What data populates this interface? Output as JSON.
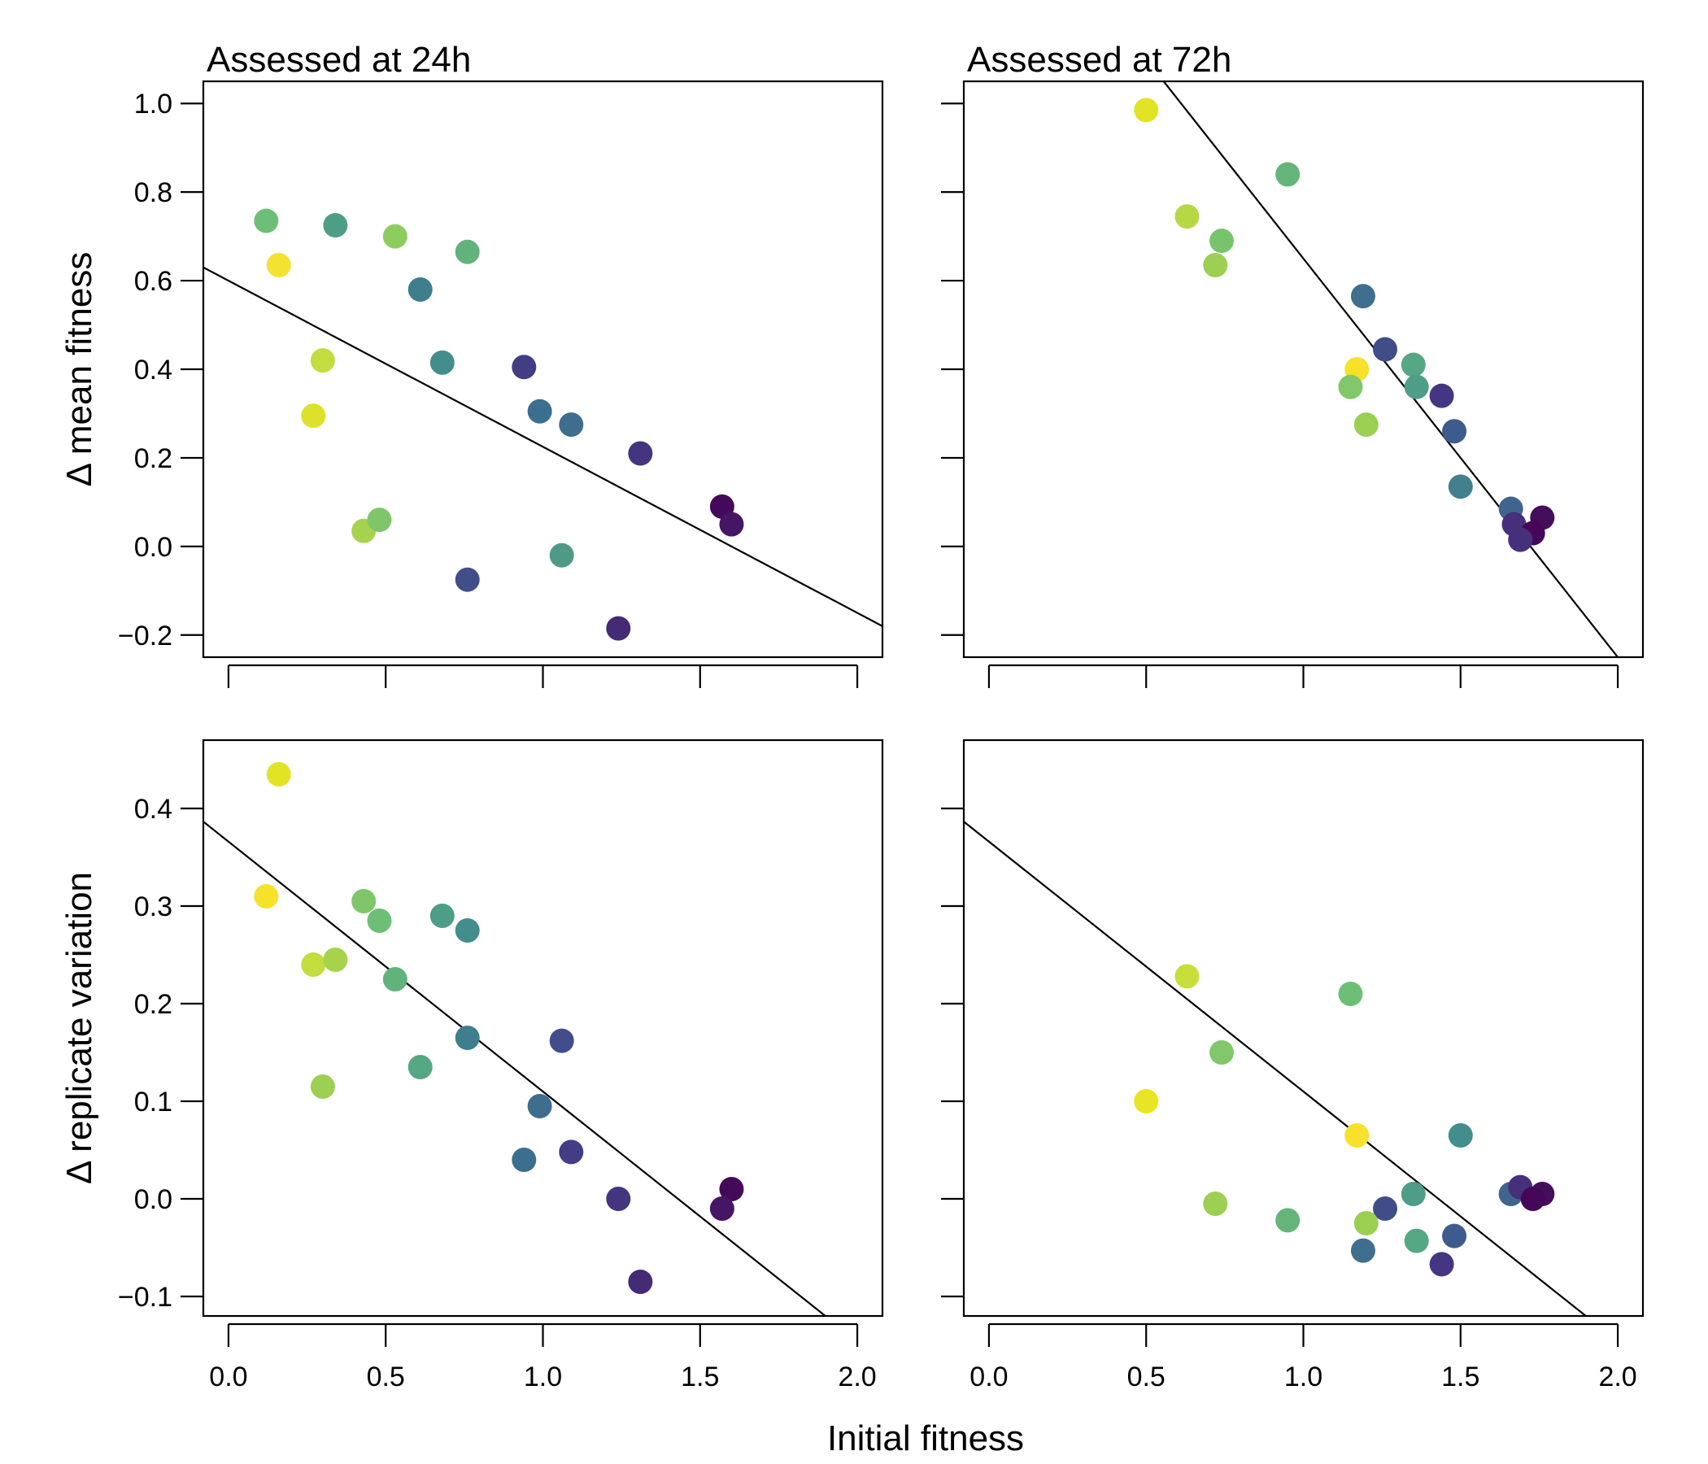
{
  "chart_data": {
    "type": "scatter",
    "xlabel": "Initial fitness",
    "titles": [
      "Assessed at 24h",
      "Assessed at 72h"
    ],
    "row_ylabels": [
      "Δ mean fitness",
      "Δ replicate variation"
    ],
    "xlim": [
      -0.08,
      2.08
    ],
    "xticks": [
      "0.0",
      "0.5",
      "1.0",
      "1.5",
      "2.0"
    ],
    "xtick_values": [
      0,
      0.5,
      1.0,
      1.5,
      2.0
    ],
    "rows": [
      {
        "ylim": [
          -0.25,
          1.05
        ],
        "yticks": [
          "−0.2",
          "0.0",
          "0.2",
          "0.4",
          "0.6",
          "0.8",
          "1.0"
        ],
        "ytick_values": [
          -0.2,
          0,
          0.2,
          0.4,
          0.6,
          0.8,
          1.0
        ]
      },
      {
        "ylim": [
          -0.12,
          0.47
        ],
        "yticks": [
          "−0.1",
          "0.0",
          "0.1",
          "0.2",
          "0.3",
          "0.4"
        ],
        "ytick_values": [
          -0.1,
          0,
          0.1,
          0.2,
          0.3,
          0.4
        ]
      }
    ],
    "panels": [
      {
        "row": 0,
        "col": 0,
        "fit_line": {
          "intercept": 0.6,
          "slope": -0.375
        },
        "points": [
          {
            "x": 0.12,
            "y": 0.735,
            "color": "#6dbf77"
          },
          {
            "x": 0.16,
            "y": 0.635,
            "color": "#f4e232"
          },
          {
            "x": 0.34,
            "y": 0.725,
            "color": "#4e9d87"
          },
          {
            "x": 0.53,
            "y": 0.7,
            "color": "#8ccd5e"
          },
          {
            "x": 0.76,
            "y": 0.665,
            "color": "#62b27b"
          },
          {
            "x": 0.61,
            "y": 0.58,
            "color": "#3e7e8d"
          },
          {
            "x": 0.3,
            "y": 0.42,
            "color": "#c3dc3e"
          },
          {
            "x": 0.68,
            "y": 0.415,
            "color": "#438e8c"
          },
          {
            "x": 0.94,
            "y": 0.405,
            "color": "#433d84"
          },
          {
            "x": 0.27,
            "y": 0.295,
            "color": "#dbe229"
          },
          {
            "x": 0.99,
            "y": 0.305,
            "color": "#3c6e8f"
          },
          {
            "x": 1.09,
            "y": 0.275,
            "color": "#3f6d8e"
          },
          {
            "x": 1.31,
            "y": 0.21,
            "color": "#453580"
          },
          {
            "x": 1.57,
            "y": 0.09,
            "color": "#440a59"
          },
          {
            "x": 1.6,
            "y": 0.05,
            "color": "#461563"
          },
          {
            "x": 0.43,
            "y": 0.035,
            "color": "#a6d34e"
          },
          {
            "x": 0.48,
            "y": 0.06,
            "color": "#7fc66b"
          },
          {
            "x": 1.06,
            "y": -0.02,
            "color": "#4f9a86"
          },
          {
            "x": 0.76,
            "y": -0.075,
            "color": "#424e8a"
          },
          {
            "x": 1.24,
            "y": -0.185,
            "color": "#452a75"
          }
        ]
      },
      {
        "row": 0,
        "col": 1,
        "fit_line": {
          "intercept": 1.55,
          "slope": -0.9
        },
        "points": [
          {
            "x": 0.5,
            "y": 0.985,
            "color": "#e3e326"
          },
          {
            "x": 0.95,
            "y": 0.84,
            "color": "#65b57a"
          },
          {
            "x": 0.63,
            "y": 0.745,
            "color": "#b6d845"
          },
          {
            "x": 0.74,
            "y": 0.69,
            "color": "#78c46e"
          },
          {
            "x": 0.72,
            "y": 0.635,
            "color": "#9ccf52"
          },
          {
            "x": 1.19,
            "y": 0.565,
            "color": "#3f6e8e"
          },
          {
            "x": 1.26,
            "y": 0.445,
            "color": "#404d89"
          },
          {
            "x": 1.35,
            "y": 0.41,
            "color": "#56a783"
          },
          {
            "x": 1.17,
            "y": 0.4,
            "color": "#f7e12a"
          },
          {
            "x": 1.15,
            "y": 0.36,
            "color": "#80c86a"
          },
          {
            "x": 1.36,
            "y": 0.36,
            "color": "#4e9d87"
          },
          {
            "x": 1.44,
            "y": 0.34,
            "color": "#453683"
          },
          {
            "x": 1.2,
            "y": 0.275,
            "color": "#9bcf52"
          },
          {
            "x": 1.48,
            "y": 0.26,
            "color": "#3d5b8c"
          },
          {
            "x": 1.5,
            "y": 0.135,
            "color": "#437f8d"
          },
          {
            "x": 1.66,
            "y": 0.085,
            "color": "#3f658e"
          },
          {
            "x": 1.76,
            "y": 0.065,
            "color": "#440e5c"
          },
          {
            "x": 1.67,
            "y": 0.05,
            "color": "#462f7b"
          },
          {
            "x": 1.73,
            "y": 0.03,
            "color": "#450858"
          },
          {
            "x": 1.69,
            "y": 0.015,
            "color": "#46307a"
          }
        ]
      },
      {
        "row": 1,
        "col": 0,
        "fit_line": {
          "intercept": 0.366,
          "slope": -0.256
        },
        "points": [
          {
            "x": 0.16,
            "y": 0.435,
            "color": "#e3e326"
          },
          {
            "x": 0.12,
            "y": 0.31,
            "color": "#f6e22a"
          },
          {
            "x": 0.43,
            "y": 0.305,
            "color": "#7fc66b"
          },
          {
            "x": 0.48,
            "y": 0.285,
            "color": "#6dbf77"
          },
          {
            "x": 0.68,
            "y": 0.29,
            "color": "#4e9d87"
          },
          {
            "x": 0.76,
            "y": 0.275,
            "color": "#438e8c"
          },
          {
            "x": 0.27,
            "y": 0.24,
            "color": "#c3dc3e"
          },
          {
            "x": 0.34,
            "y": 0.245,
            "color": "#a6d34e"
          },
          {
            "x": 0.53,
            "y": 0.225,
            "color": "#62b27b"
          },
          {
            "x": 0.76,
            "y": 0.165,
            "color": "#3e7e8d"
          },
          {
            "x": 1.06,
            "y": 0.162,
            "color": "#424e8a"
          },
          {
            "x": 0.61,
            "y": 0.135,
            "color": "#56a783"
          },
          {
            "x": 0.3,
            "y": 0.115,
            "color": "#9ccf52"
          },
          {
            "x": 0.99,
            "y": 0.095,
            "color": "#3f6d8e"
          },
          {
            "x": 0.94,
            "y": 0.04,
            "color": "#3c6e8f"
          },
          {
            "x": 1.09,
            "y": 0.048,
            "color": "#433d84"
          },
          {
            "x": 1.24,
            "y": 0.0,
            "color": "#453580"
          },
          {
            "x": 1.6,
            "y": 0.01,
            "color": "#440a59"
          },
          {
            "x": 1.57,
            "y": -0.01,
            "color": "#461563"
          },
          {
            "x": 1.31,
            "y": -0.085,
            "color": "#452a75"
          }
        ]
      },
      {
        "row": 1,
        "col": 1,
        "fit_line": {
          "intercept": 0.366,
          "slope": -0.256
        },
        "points": [
          {
            "x": 0.63,
            "y": 0.228,
            "color": "#c8de3a"
          },
          {
            "x": 1.15,
            "y": 0.21,
            "color": "#6dbf77"
          },
          {
            "x": 0.74,
            "y": 0.15,
            "color": "#80c86a"
          },
          {
            "x": 0.5,
            "y": 0.1,
            "color": "#e9e524"
          },
          {
            "x": 1.17,
            "y": 0.065,
            "color": "#f7e12a"
          },
          {
            "x": 1.5,
            "y": 0.065,
            "color": "#438e8c"
          },
          {
            "x": 1.35,
            "y": 0.005,
            "color": "#4e9d87"
          },
          {
            "x": 1.66,
            "y": 0.005,
            "color": "#3f658e"
          },
          {
            "x": 1.69,
            "y": 0.012,
            "color": "#46307a"
          },
          {
            "x": 1.76,
            "y": 0.005,
            "color": "#440e5c"
          },
          {
            "x": 1.73,
            "y": 0.0,
            "color": "#450858"
          },
          {
            "x": 0.72,
            "y": -0.005,
            "color": "#9ccf52"
          },
          {
            "x": 1.26,
            "y": -0.01,
            "color": "#404d89"
          },
          {
            "x": 0.95,
            "y": -0.022,
            "color": "#65b57a"
          },
          {
            "x": 1.2,
            "y": -0.025,
            "color": "#9bcf52"
          },
          {
            "x": 1.48,
            "y": -0.038,
            "color": "#3d5b8c"
          },
          {
            "x": 1.36,
            "y": -0.043,
            "color": "#56a783"
          },
          {
            "x": 1.19,
            "y": -0.053,
            "color": "#3f6e8e"
          },
          {
            "x": 1.44,
            "y": -0.067,
            "color": "#453683"
          }
        ]
      }
    ]
  }
}
